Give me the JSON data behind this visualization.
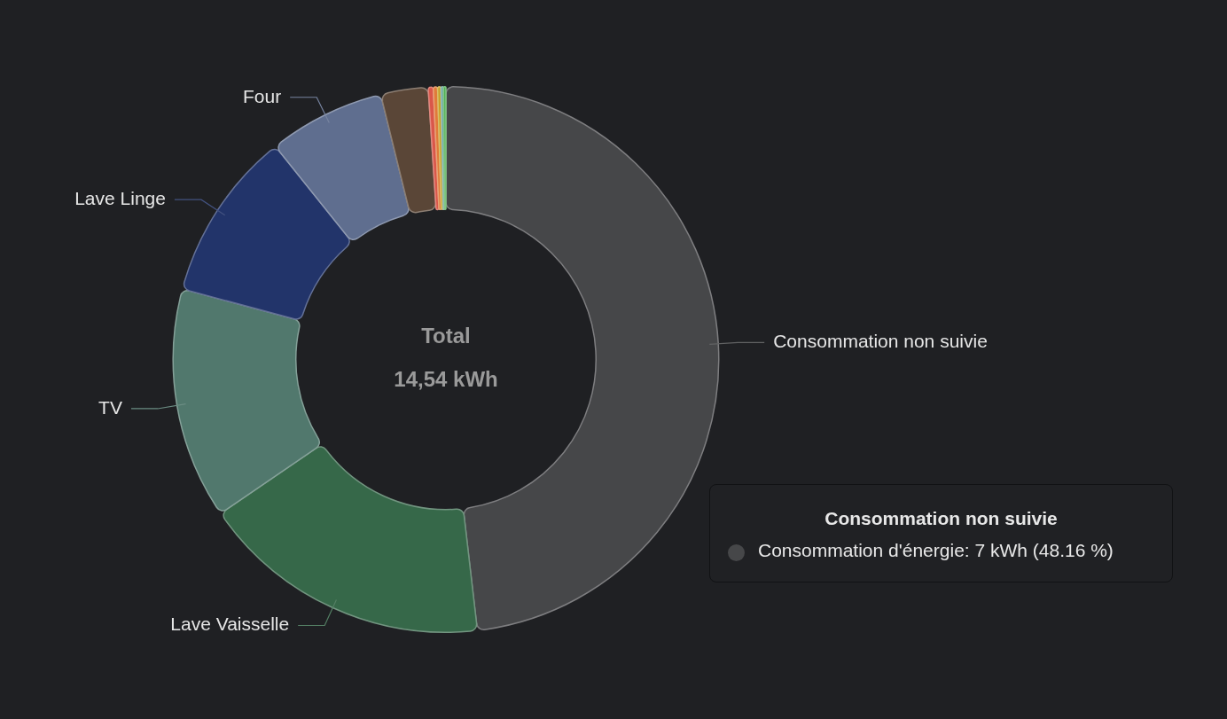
{
  "chart_data": {
    "type": "donut",
    "categories": [
      "Consommation non suivie",
      "Lave Vaisselle",
      "TV",
      "Lave Linge",
      "Four",
      null,
      null,
      null,
      null,
      null,
      null
    ],
    "values": [
      48.16,
      17.3,
      13.7,
      10.1,
      6.9,
      2.8,
      0.3,
      0.25,
      0.2,
      0.15,
      0.14
    ],
    "colors": [
      "#464749",
      "#366849",
      "#51786d",
      "#22346a",
      "#5f6e8f",
      "#5a4637",
      "#d9574a",
      "#e07a3a",
      "#c9a227",
      "#6aa7a0",
      "#4caf50"
    ],
    "annotations": [
      "Total",
      "14,54 kWh",
      "Consommation non suivie",
      "Consommation d'énergie: 7 kWh (48.16 %)"
    ]
  }
}
